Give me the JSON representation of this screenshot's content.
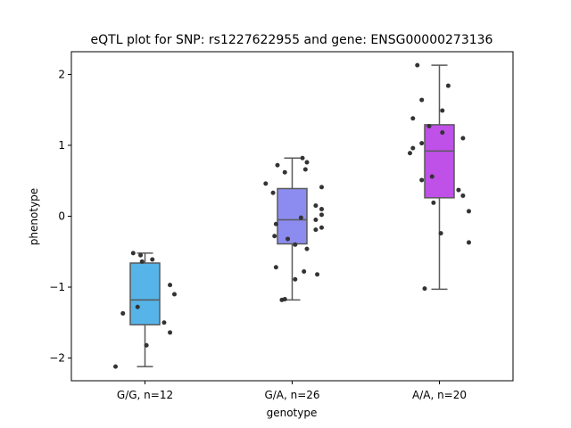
{
  "chart_data": {
    "type": "box",
    "title": "eQTL plot for SNP: rs1227622955 and gene: ENSG00000273136",
    "xlabel": "genotype",
    "ylabel": "phenotype",
    "ylim": [
      -2.32,
      2.32
    ],
    "yticks": [
      -2,
      -1,
      0,
      1,
      2
    ],
    "yticklabels": [
      "−2",
      "−1",
      "0",
      "1",
      "2"
    ],
    "grid": false,
    "groups": [
      {
        "label": "G/G, n=12",
        "color": "#56b4e9",
        "whisker_low": -2.12,
        "q1": -1.53,
        "median": -1.18,
        "q3": -0.66,
        "whisker_high": -0.52,
        "points": [
          {
            "x": -0.08,
            "y": -0.52
          },
          {
            "x": -0.03,
            "y": -0.55
          },
          {
            "x": -0.02,
            "y": -0.64
          },
          {
            "x": 0.05,
            "y": -0.61
          },
          {
            "x": 0.17,
            "y": -0.97
          },
          {
            "x": 0.2,
            "y": -1.1
          },
          {
            "x": -0.15,
            "y": -1.37
          },
          {
            "x": -0.05,
            "y": -1.28
          },
          {
            "x": 0.13,
            "y": -1.5
          },
          {
            "x": 0.17,
            "y": -1.64
          },
          {
            "x": 0.01,
            "y": -1.82
          },
          {
            "x": -0.2,
            "y": -2.12
          }
        ]
      },
      {
        "label": "G/A, n=26",
        "color": "#8c8cf0",
        "whisker_low": -1.18,
        "q1": -0.39,
        "median": -0.05,
        "q3": 0.39,
        "whisker_high": 0.82,
        "points": [
          {
            "x": 0.07,
            "y": 0.82
          },
          {
            "x": 0.1,
            "y": 0.76
          },
          {
            "x": -0.1,
            "y": 0.72
          },
          {
            "x": 0.09,
            "y": 0.66
          },
          {
            "x": -0.05,
            "y": 0.62
          },
          {
            "x": -0.18,
            "y": 0.46
          },
          {
            "x": 0.2,
            "y": 0.41
          },
          {
            "x": -0.13,
            "y": 0.33
          },
          {
            "x": 0.16,
            "y": 0.15
          },
          {
            "x": 0.2,
            "y": 0.1
          },
          {
            "x": 0.2,
            "y": 0.02
          },
          {
            "x": 0.06,
            "y": -0.02
          },
          {
            "x": 0.16,
            "y": -0.05
          },
          {
            "x": -0.11,
            "y": -0.11
          },
          {
            "x": 0.2,
            "y": -0.16
          },
          {
            "x": 0.16,
            "y": -0.19
          },
          {
            "x": -0.12,
            "y": -0.28
          },
          {
            "x": -0.03,
            "y": -0.32
          },
          {
            "x": 0.02,
            "y": -0.4
          },
          {
            "x": -0.11,
            "y": -0.72
          },
          {
            "x": 0.08,
            "y": -0.78
          },
          {
            "x": 0.17,
            "y": -0.82
          },
          {
            "x": 0.02,
            "y": -0.89
          },
          {
            "x": -0.05,
            "y": -1.17
          },
          {
            "x": -0.07,
            "y": -1.18
          },
          {
            "x": 0.1,
            "y": -0.46
          }
        ]
      },
      {
        "label": "A/A, n=20",
        "color": "#bf50e8",
        "whisker_low": -1.03,
        "q1": 0.26,
        "median": 0.92,
        "q3": 1.29,
        "whisker_high": 2.13,
        "points": [
          {
            "x": -0.15,
            "y": 2.13
          },
          {
            "x": 0.06,
            "y": 1.84
          },
          {
            "x": -0.12,
            "y": 1.64
          },
          {
            "x": 0.02,
            "y": 1.49
          },
          {
            "x": -0.18,
            "y": 1.38
          },
          {
            "x": -0.07,
            "y": 1.27
          },
          {
            "x": 0.02,
            "y": 1.18
          },
          {
            "x": 0.16,
            "y": 1.1
          },
          {
            "x": -0.12,
            "y": 1.03
          },
          {
            "x": -0.18,
            "y": 0.96
          },
          {
            "x": -0.2,
            "y": 0.89
          },
          {
            "x": -0.05,
            "y": 0.56
          },
          {
            "x": -0.12,
            "y": 0.51
          },
          {
            "x": 0.13,
            "y": 0.37
          },
          {
            "x": 0.16,
            "y": 0.29
          },
          {
            "x": -0.04,
            "y": 0.19
          },
          {
            "x": 0.2,
            "y": 0.07
          },
          {
            "x": 0.01,
            "y": -0.24
          },
          {
            "x": 0.2,
            "y": -0.37
          },
          {
            "x": -0.1,
            "y": -1.02
          }
        ]
      }
    ]
  }
}
